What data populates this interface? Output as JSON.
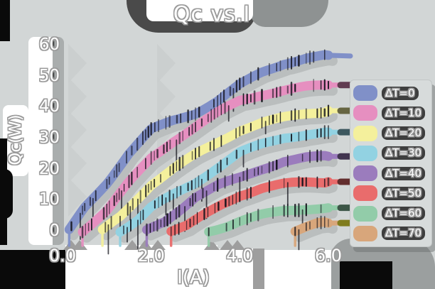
{
  "title": "Qc vs.I",
  "axes": {
    "xlabel": "I(A)",
    "ylabel": "Qc(W)",
    "x_ticks": [
      "0.0",
      "2.0",
      "4.0",
      "6.0"
    ],
    "y_ticks": [
      "0",
      "10",
      "20",
      "30",
      "40",
      "50",
      "60"
    ],
    "xlim": [
      0,
      6
    ],
    "ylim": [
      0,
      60
    ],
    "grid": false
  },
  "legend": {
    "position": "right",
    "entries": [
      {
        "label": "ΔT=0",
        "color": "#8090c8"
      },
      {
        "label": "ΔT=10",
        "color": "#e68fc0"
      },
      {
        "label": "ΔT=20",
        "color": "#f4f09c"
      },
      {
        "label": "ΔT=30",
        "color": "#92d2e2"
      },
      {
        "label": "ΔT=40",
        "color": "#9b7cbd"
      },
      {
        "label": "ΔT=50",
        "color": "#e96c6c"
      },
      {
        "label": "ΔT=60",
        "color": "#92cca9"
      },
      {
        "label": "ΔT=70",
        "color": "#d8a67b"
      }
    ]
  },
  "chart_data": {
    "type": "line",
    "title": "Qc vs.I",
    "xlabel": "I(A)",
    "ylabel": "Qc(W)",
    "xlim": [
      0,
      6
    ],
    "ylim": [
      0,
      60
    ],
    "grid": false,
    "legend_position": "right",
    "series": [
      {
        "name": "ΔT=0",
        "color": "#8090c8",
        "points": [
          [
            0.15,
            0
          ],
          [
            0.5,
            7.5
          ],
          [
            1.0,
            15.5
          ],
          [
            1.5,
            25
          ],
          [
            2.0,
            32.5
          ],
          [
            2.5,
            35.5
          ],
          [
            3.0,
            38
          ],
          [
            3.5,
            42
          ],
          [
            4.0,
            47
          ],
          [
            4.5,
            51
          ],
          [
            5.0,
            54
          ],
          [
            5.5,
            55.8
          ],
          [
            6.0,
            56.6
          ]
        ]
      },
      {
        "name": "ΔT=10",
        "color": "#e68fc0",
        "points": [
          [
            0.45,
            0
          ],
          [
            1.0,
            6.5
          ],
          [
            1.5,
            15.5
          ],
          [
            2.0,
            23.5
          ],
          [
            2.5,
            29
          ],
          [
            3.0,
            33.5
          ],
          [
            3.5,
            38
          ],
          [
            4.0,
            42
          ],
          [
            4.5,
            44
          ],
          [
            5.0,
            45.3
          ],
          [
            5.5,
            46.3
          ],
          [
            6.0,
            47
          ]
        ]
      },
      {
        "name": "ΔT=20",
        "color": "#f4f09c",
        "points": [
          [
            0.9,
            0
          ],
          [
            1.3,
            4.5
          ],
          [
            1.7,
            10.5
          ],
          [
            2.0,
            15
          ],
          [
            2.5,
            20
          ],
          [
            3.0,
            24.5
          ],
          [
            3.5,
            28.5
          ],
          [
            4.0,
            32.5
          ],
          [
            4.5,
            34.8
          ],
          [
            5.0,
            36.4
          ],
          [
            5.5,
            37.8
          ],
          [
            6.0,
            38.7
          ]
        ]
      },
      {
        "name": "ΔT=30",
        "color": "#92d2e2",
        "points": [
          [
            1.3,
            0
          ],
          [
            1.7,
            3.5
          ],
          [
            2.0,
            7.5
          ],
          [
            2.5,
            11.5
          ],
          [
            3.0,
            15.5
          ],
          [
            3.5,
            20.5
          ],
          [
            4.0,
            25.2
          ],
          [
            4.5,
            27.8
          ],
          [
            5.0,
            30
          ],
          [
            5.5,
            31.2
          ],
          [
            6.0,
            31.8
          ]
        ]
      },
      {
        "name": "ΔT=40",
        "color": "#9b7cbd",
        "points": [
          [
            1.9,
            0
          ],
          [
            2.3,
            3
          ],
          [
            2.7,
            7.5
          ],
          [
            3.0,
            11
          ],
          [
            3.5,
            14.5
          ],
          [
            4.0,
            17
          ],
          [
            4.5,
            20
          ],
          [
            5.0,
            22.5
          ],
          [
            5.5,
            23.5
          ],
          [
            6.0,
            24
          ]
        ]
      },
      {
        "name": "ΔT=50",
        "color": "#e96c6c",
        "points": [
          [
            2.45,
            0
          ],
          [
            2.8,
            1.5
          ],
          [
            3.2,
            5
          ],
          [
            3.6,
            8.5
          ],
          [
            4.0,
            11.5
          ],
          [
            4.5,
            13.8
          ],
          [
            5.0,
            15
          ],
          [
            5.5,
            15.6
          ],
          [
            6.0,
            15.8
          ]
        ]
      },
      {
        "name": "ΔT=60",
        "color": "#92cca9",
        "points": [
          [
            3.3,
            0
          ],
          [
            3.7,
            1.5
          ],
          [
            4.0,
            3
          ],
          [
            4.5,
            5
          ],
          [
            5.0,
            6.5
          ],
          [
            5.5,
            7.2
          ],
          [
            6.0,
            7.4
          ]
        ]
      },
      {
        "name": "ΔT=70",
        "color": "#d8a67b",
        "points": [
          [
            5.25,
            0
          ],
          [
            5.5,
            1.2
          ],
          [
            5.75,
            2.2
          ],
          [
            6.0,
            2.5
          ]
        ]
      }
    ]
  },
  "style": {
    "background": "#d2d6d6",
    "shadow_dark": "#4a4a4a",
    "panel_white": "#ffffff",
    "text_outline": "#9b9b9b",
    "band_shadow": "#babebe",
    "triangle": "#c9cdcd",
    "hatch": "#14141c",
    "tan_tail_cap": "#7f7c1e"
  }
}
